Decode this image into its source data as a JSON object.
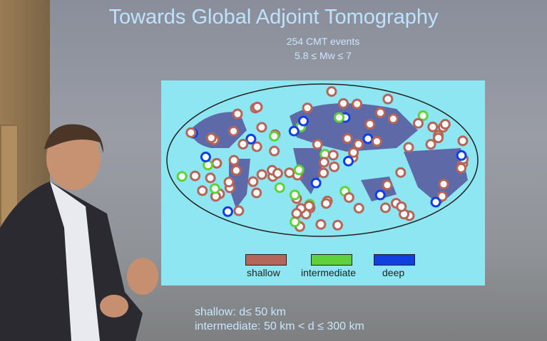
{
  "slide": {
    "title": "Towards Global Adjoint Tomography",
    "subtitle_line1": "254 CMT events",
    "subtitle_line2": "5.8 ≤ Mw ≤ 7",
    "legend": [
      {
        "label": "shallow",
        "color": "#b5665a"
      },
      {
        "label": "intermediate",
        "color": "#5fd13a"
      },
      {
        "label": "deep",
        "color": "#1240e0"
      }
    ],
    "definitions": [
      "shallow: d≤ 50 km",
      "intermediate: 50 km < d ≤ 300 km"
    ]
  }
}
